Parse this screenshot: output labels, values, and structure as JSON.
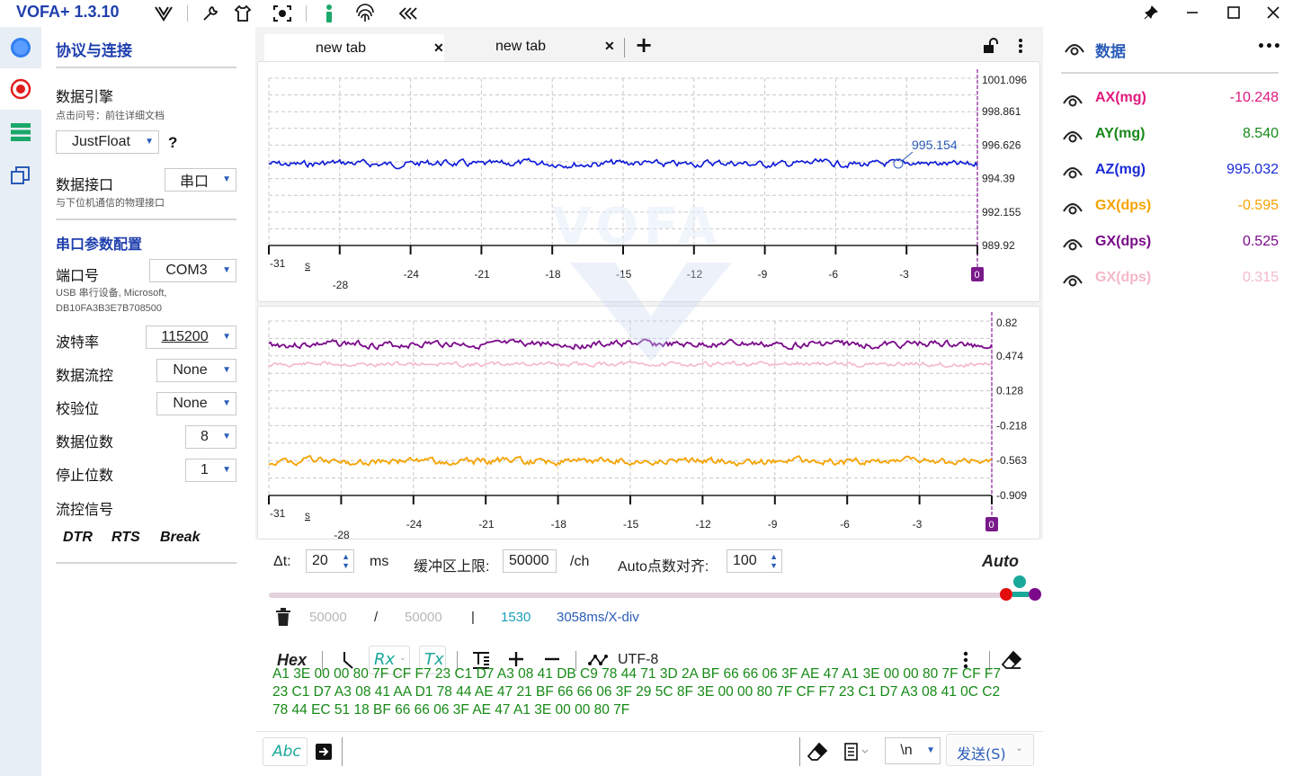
{
  "app": {
    "title": "VOFA+ 1.3.10",
    "toolbar_icons": [
      "vofa-logo-icon",
      "wrench-icon",
      "shirt-icon",
      "capture-icon",
      "info-icon",
      "fingerprint-icon",
      "collapse-icon"
    ],
    "window_controls": [
      "pin-icon",
      "minimize-icon",
      "maximize-icon",
      "close-icon"
    ]
  },
  "rail": {
    "items": [
      "connection-icon",
      "record-icon",
      "list-icon",
      "windows-icon"
    ]
  },
  "left_panel": {
    "section_title": "协议与连接",
    "engine_label": "数据引擎",
    "engine_hint": "点击问号：前往详细文档",
    "engine_value": "JustFloat",
    "engine_help": "?",
    "interface_label": "数据接口",
    "interface_value": "串口",
    "interface_hint": "与下位机通信的物理接口",
    "serial_title": "串口参数配置",
    "port_label": "端口号",
    "port_value": "COM3",
    "port_desc_1": "USB 串行设备, Microsoft,",
    "port_desc_2": "DB10FA3B3E7B708500",
    "baud_label": "波特率",
    "baud_value": "115200",
    "flow_label": "数据流控",
    "flow_value": "None",
    "parity_label": "校验位",
    "parity_value": "None",
    "databits_label": "数据位数",
    "databits_value": "8",
    "stopbits_label": "停止位数",
    "stopbits_value": "1",
    "flowsig_label": "流控信号",
    "dtr": "DTR",
    "rts": "RTS",
    "brk": "Break"
  },
  "tabs": [
    {
      "label": "new tab",
      "close": "✕"
    },
    {
      "label": "new tab",
      "close": "✕"
    }
  ],
  "add_tab": "+",
  "plot1": {
    "y_ticks": [
      "1001.096",
      "998.861",
      "996.626",
      "994.39",
      "992.155",
      "989.92"
    ],
    "x_ticks_top": [
      "-31",
      "-24",
      "-21",
      "-18",
      "-15",
      "-12",
      "-9",
      "-6",
      "-3"
    ],
    "x_unit": "s",
    "x_tick_low": "-28",
    "x_zero": "0",
    "marker_value": "995.154",
    "series_color": "#0a18d6"
  },
  "plot2": {
    "y_ticks": [
      "0.82",
      "0.474",
      "0.128",
      "-0.218",
      "-0.563",
      "-0.909"
    ],
    "x_ticks_top": [
      "-31",
      "-24",
      "-21",
      "-18",
      "-15",
      "-12",
      "-9",
      "-6",
      "-3"
    ],
    "x_unit": "s",
    "x_tick_low": "-28",
    "x_zero": "0",
    "series_colors": [
      "#7a0a8a",
      "#f4b8c8",
      "#f5a300"
    ]
  },
  "controls": {
    "dt_label": "Δt:",
    "dt_value": "20",
    "dt_unit": "ms",
    "buffer_label": "缓冲区上限:",
    "buffer_value": "50000",
    "buffer_unit": "/ch",
    "auto_align_label": "Auto点数对齐:",
    "auto_align_value": "100",
    "auto_label": "Auto",
    "stat_a": "50000",
    "stat_slash": "/",
    "stat_b": "50000",
    "stat_bar": "|",
    "stat_points": "1530",
    "stat_div": "3058ms/X-div"
  },
  "rx_toolbar": {
    "hex": "Hex",
    "rx": "Rx",
    "tx": "Tx",
    "encoding": "UTF-8"
  },
  "rx_lines": [
    "A1 3E 00 00 80 7F CF F7 23 C1 D7 A3 08 41 DB C9 78 44 71 3D 2A BF 66 66 06 3F AE 47 A1 3E 00 00 80 7F CF F7",
    "23 C1 D7 A3 08 41 AA D1 78 44 AE 47 21 BF 66 66 06 3F 29 5C 8F 3E 00 00 80 7F CF F7 23 C1 D7 A3 08 41 0C C2",
    "78 44 EC 51 18 BF 66 66 06 3F AE 47 A1 3E 00 00 80 7F"
  ],
  "send_bar": {
    "abc": "Abc",
    "line_end": "\\n",
    "send": "发送(S)"
  },
  "right_panel": {
    "title": "数据",
    "menu": "•••",
    "channels": [
      {
        "name": "AX(mg)",
        "value": "-10.248",
        "color": "#e0197d"
      },
      {
        "name": "AY(mg)",
        "value": "8.540",
        "color": "#18881a"
      },
      {
        "name": "AZ(mg)",
        "value": "995.032",
        "color": "#1a2ad8"
      },
      {
        "name": "GX(dps)",
        "value": "-0.595",
        "color": "#f5a300"
      },
      {
        "name": "GX(dps)",
        "value": "0.525",
        "color": "#7a0a8a"
      },
      {
        "name": "GX(dps)",
        "value": "0.315",
        "color": "#f4b8c8"
      }
    ]
  },
  "watermark": "VOFA"
}
